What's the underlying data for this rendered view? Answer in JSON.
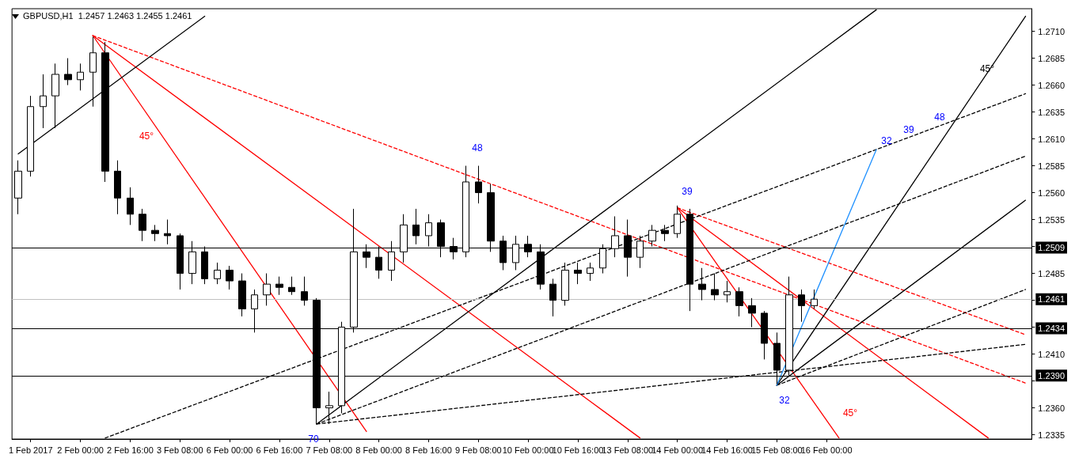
{
  "chart_data": {
    "type": "candlestick",
    "title": "GBPUSD,H1  1.2457 1.2463 1.2455 1.2461",
    "categories": [
      null,
      "1 Feb 2017",
      null,
      null,
      null,
      "2 Feb 00:00",
      null,
      null,
      null,
      "2 Feb 16:00",
      null,
      null,
      null,
      "3 Feb 08:00",
      null,
      null,
      null,
      "6 Feb 00:00",
      null,
      null,
      null,
      "6 Feb 16:00",
      null,
      null,
      null,
      "7 Feb 08:00",
      null,
      null,
      null,
      "8 Feb 00:00",
      null,
      null,
      null,
      "8 Feb 16:00",
      null,
      null,
      null,
      "9 Feb 08:00",
      null,
      null,
      null,
      "10 Feb 00:00",
      null,
      null,
      null,
      "10 Feb 16:00",
      null,
      null,
      null,
      "13 Feb 08:00",
      null,
      null,
      null,
      "14 Feb 00:00",
      null,
      null,
      null,
      "14 Feb 16:00",
      null,
      null,
      null,
      "15 Feb 08:00",
      null,
      null,
      null,
      "16 Feb 00:00",
      null,
      null,
      null,
      null,
      null,
      null,
      null,
      null,
      null,
      null,
      null,
      null,
      null,
      null,
      null,
      null
    ],
    "ohlc": [
      [
        1.2555,
        1.259,
        1.254,
        1.258
      ],
      [
        1.258,
        1.265,
        1.2575,
        1.264
      ],
      [
        1.264,
        1.267,
        1.262,
        1.265
      ],
      [
        1.265,
        1.268,
        1.262,
        1.267
      ],
      [
        1.267,
        1.2685,
        1.266,
        1.2665
      ],
      [
        1.2665,
        1.268,
        1.2655,
        1.2672
      ],
      [
        1.2672,
        1.2705,
        1.264,
        1.269
      ],
      [
        1.269,
        1.27,
        1.257,
        1.258
      ],
      [
        1.258,
        1.259,
        1.254,
        1.2555
      ],
      [
        1.2555,
        1.2565,
        1.253,
        1.254
      ],
      [
        1.254,
        1.2545,
        1.2515,
        1.2525
      ],
      [
        1.2525,
        1.253,
        1.2515,
        1.2522
      ],
      [
        1.2522,
        1.2535,
        1.2512,
        1.252
      ],
      [
        1.252,
        1.2522,
        1.247,
        1.2485
      ],
      [
        1.2485,
        1.2515,
        1.2475,
        1.2505
      ],
      [
        1.2505,
        1.251,
        1.2475,
        1.248
      ],
      [
        1.248,
        1.2495,
        1.2475,
        1.2488
      ],
      [
        1.2488,
        1.2492,
        1.247,
        1.2478
      ],
      [
        1.2478,
        1.2485,
        1.2445,
        1.2452
      ],
      [
        1.2452,
        1.247,
        1.243,
        1.2465
      ],
      [
        1.2465,
        1.2485,
        1.2455,
        1.2475
      ],
      [
        1.2475,
        1.2482,
        1.2465,
        1.2472
      ],
      [
        1.2472,
        1.2482,
        1.2465,
        1.2468
      ],
      [
        1.2468,
        1.2482,
        1.2455,
        1.246
      ],
      [
        1.246,
        1.2462,
        1.2345,
        1.236
      ],
      [
        1.236,
        1.2375,
        1.2345,
        1.2362
      ],
      [
        1.2362,
        1.244,
        1.2355,
        1.2435
      ],
      [
        1.2435,
        1.2545,
        1.243,
        1.2505
      ],
      [
        1.2505,
        1.2512,
        1.249,
        1.25
      ],
      [
        1.25,
        1.251,
        1.248,
        1.2488
      ],
      [
        1.2488,
        1.2515,
        1.2478,
        1.2505
      ],
      [
        1.2505,
        1.254,
        1.2495,
        1.253
      ],
      [
        1.253,
        1.2545,
        1.2512,
        1.252
      ],
      [
        1.252,
        1.254,
        1.251,
        1.2532
      ],
      [
        1.2532,
        1.2535,
        1.25,
        1.251
      ],
      [
        1.251,
        1.2518,
        1.2498,
        1.2505
      ],
      [
        1.2505,
        1.2585,
        1.25,
        1.257
      ],
      [
        1.257,
        1.2585,
        1.255,
        1.256
      ],
      [
        1.256,
        1.2568,
        1.2505,
        1.2515
      ],
      [
        1.2515,
        1.252,
        1.2488,
        1.2495
      ],
      [
        1.2495,
        1.252,
        1.2488,
        1.2512
      ],
      [
        1.2512,
        1.252,
        1.25,
        1.2505
      ],
      [
        1.2505,
        1.2512,
        1.247,
        1.2475
      ],
      [
        1.2475,
        1.248,
        1.2445,
        1.246
      ],
      [
        1.246,
        1.2495,
        1.2455,
        1.2488
      ],
      [
        1.2488,
        1.2495,
        1.2475,
        1.2485
      ],
      [
        1.2485,
        1.2495,
        1.2478,
        1.249
      ],
      [
        1.249,
        1.2512,
        1.2485,
        1.2508
      ],
      [
        1.2508,
        1.2538,
        1.25,
        1.252
      ],
      [
        1.252,
        1.2535,
        1.2482,
        1.25
      ],
      [
        1.25,
        1.252,
        1.249,
        1.2515
      ],
      [
        1.2515,
        1.253,
        1.251,
        1.2525
      ],
      [
        1.2525,
        1.253,
        1.2515,
        1.2522
      ],
      [
        1.2522,
        1.2548,
        1.2518,
        1.254
      ],
      [
        1.254,
        1.2545,
        1.245,
        1.2475
      ],
      [
        1.2475,
        1.249,
        1.246,
        1.247
      ],
      [
        1.247,
        1.2485,
        1.246,
        1.2465
      ],
      [
        1.2465,
        1.2478,
        1.2458,
        1.2468
      ],
      [
        1.2468,
        1.2472,
        1.2445,
        1.2455
      ],
      [
        1.2455,
        1.2462,
        1.2435,
        1.2448
      ],
      [
        1.2448,
        1.245,
        1.2405,
        1.242
      ],
      [
        1.242,
        1.243,
        1.2382,
        1.2395
      ],
      [
        1.2395,
        1.2482,
        1.239,
        1.2465
      ],
      [
        1.2465,
        1.247,
        1.244,
        1.2455
      ],
      [
        1.2455,
        1.247,
        1.2452,
        1.2461
      ],
      null,
      null,
      null,
      null,
      null,
      null,
      null,
      null,
      null,
      null,
      null,
      null,
      null,
      null,
      null,
      null,
      null
    ],
    "color": "#000000",
    "series": [
      {
        "type": "line",
        "color": "#ff0000",
        "line_style": "solid",
        "values": [
          null,
          null,
          null,
          null,
          null,
          null,
          1.2706,
          null,
          null,
          null,
          null,
          null,
          null,
          null,
          null,
          null,
          null,
          null,
          null,
          null,
          null,
          null,
          null,
          null,
          null,
          null,
          null,
          null,
          1.2338,
          null,
          null,
          null,
          null,
          null,
          null,
          null,
          null,
          null,
          null,
          null,
          null,
          null,
          null,
          null,
          null,
          null,
          null,
          null,
          null,
          null,
          null,
          null,
          null,
          null,
          null,
          null,
          null,
          null,
          null,
          null,
          null,
          null,
          null,
          null,
          null,
          null,
          null,
          null,
          null,
          null,
          null,
          null,
          null,
          null,
          null,
          null,
          null,
          null,
          null,
          null,
          null,
          null
        ]
      },
      {
        "type": "line",
        "color": "#ff0000",
        "line_style": "solid",
        "values": [
          null,
          null,
          null,
          null,
          null,
          null,
          1.2706,
          null,
          null,
          null,
          null,
          null,
          null,
          null,
          null,
          null,
          null,
          null,
          null,
          null,
          null,
          null,
          null,
          null,
          null,
          null,
          null,
          null,
          null,
          null,
          null,
          null,
          null,
          null,
          null,
          null,
          null,
          null,
          null,
          null,
          null,
          null,
          null,
          null,
          null,
          null,
          null,
          null,
          null,
          null,
          1.2332,
          null,
          null,
          null,
          null,
          null,
          null,
          null,
          null,
          null,
          null,
          null,
          null,
          null,
          null,
          null,
          null,
          null,
          null,
          null,
          null,
          null,
          null,
          null,
          null,
          null,
          null,
          null,
          null,
          null,
          null,
          null
        ]
      },
      {
        "type": "line",
        "color": "#ff0000",
        "line_style": "dashed",
        "values": [
          null,
          null,
          null,
          null,
          null,
          null,
          1.2706,
          null,
          null,
          null,
          null,
          null,
          null,
          null,
          null,
          null,
          null,
          null,
          null,
          null,
          null,
          null,
          null,
          null,
          null,
          null,
          null,
          null,
          null,
          null,
          null,
          null,
          null,
          null,
          null,
          null,
          null,
          null,
          null,
          null,
          null,
          null,
          null,
          null,
          null,
          null,
          null,
          null,
          null,
          null,
          null,
          null,
          null,
          null,
          null,
          null,
          null,
          null,
          null,
          null,
          null,
          null,
          null,
          null,
          null,
          null,
          null,
          null,
          null,
          null,
          null,
          null,
          null,
          null,
          null,
          null,
          null,
          null,
          null,
          null,
          null,
          1.2383
        ]
      },
      {
        "type": "line",
        "color": "#ff0000",
        "line_style": "solid",
        "values": [
          null,
          null,
          null,
          null,
          null,
          null,
          null,
          null,
          null,
          null,
          null,
          null,
          null,
          null,
          null,
          null,
          null,
          null,
          null,
          null,
          null,
          null,
          null,
          null,
          null,
          null,
          null,
          null,
          null,
          null,
          null,
          null,
          null,
          null,
          null,
          null,
          null,
          null,
          null,
          null,
          null,
          null,
          null,
          null,
          null,
          null,
          null,
          null,
          null,
          null,
          null,
          null,
          null,
          1.2546,
          null,
          null,
          null,
          null,
          null,
          null,
          null,
          null,
          null,
          null,
          null,
          null,
          1.2332,
          null,
          null,
          null,
          null,
          null,
          null,
          null,
          null,
          null,
          null,
          null,
          null,
          null,
          null,
          null
        ]
      },
      {
        "type": "line",
        "color": "#ff0000",
        "line_style": "solid",
        "values": [
          null,
          null,
          null,
          null,
          null,
          null,
          null,
          null,
          null,
          null,
          null,
          null,
          null,
          null,
          null,
          null,
          null,
          null,
          null,
          null,
          null,
          null,
          null,
          null,
          null,
          null,
          null,
          null,
          null,
          null,
          null,
          null,
          null,
          null,
          null,
          null,
          null,
          null,
          null,
          null,
          null,
          null,
          null,
          null,
          null,
          null,
          null,
          null,
          null,
          null,
          null,
          null,
          null,
          1.2546,
          null,
          null,
          null,
          null,
          null,
          null,
          null,
          null,
          null,
          null,
          null,
          null,
          null,
          null,
          null,
          null,
          null,
          null,
          null,
          null,
          null,
          null,
          null,
          null,
          1.2332,
          null,
          null,
          null
        ]
      },
      {
        "type": "line",
        "color": "#ff0000",
        "line_style": "dashed",
        "values": [
          null,
          null,
          null,
          null,
          null,
          null,
          null,
          null,
          null,
          null,
          null,
          null,
          null,
          null,
          null,
          null,
          null,
          null,
          null,
          null,
          null,
          null,
          null,
          null,
          null,
          null,
          null,
          null,
          null,
          null,
          null,
          null,
          null,
          null,
          null,
          null,
          null,
          null,
          null,
          null,
          null,
          null,
          null,
          null,
          null,
          null,
          null,
          null,
          null,
          null,
          null,
          null,
          null,
          1.2546,
          null,
          null,
          null,
          null,
          null,
          null,
          null,
          null,
          null,
          null,
          null,
          null,
          null,
          null,
          null,
          null,
          null,
          null,
          null,
          null,
          null,
          null,
          null,
          null,
          null,
          null,
          null,
          1.2428
        ]
      },
      {
        "type": "line",
        "color": "#000000",
        "line_style": "solid",
        "values": [
          1.2596,
          null,
          null,
          null,
          null,
          null,
          null,
          null,
          null,
          null,
          null,
          null,
          null,
          null,
          null,
          1.2724,
          null,
          null,
          null,
          null,
          null,
          null,
          null,
          null,
          null,
          null,
          null,
          null,
          null,
          null,
          null,
          null,
          null,
          null,
          null,
          null,
          null,
          null,
          null,
          null,
          null,
          null,
          null,
          null,
          null,
          null,
          null,
          null,
          null,
          null,
          null,
          null,
          null,
          null,
          null,
          null,
          null,
          null,
          null,
          null,
          null,
          null,
          null,
          null,
          null,
          null,
          null,
          null,
          null,
          null,
          null,
          null,
          null,
          null,
          null,
          null,
          null,
          null,
          null,
          null,
          null,
          null
        ]
      },
      {
        "type": "line",
        "color": "#000000",
        "line_style": "solid",
        "values": [
          null,
          null,
          null,
          null,
          null,
          null,
          null,
          null,
          null,
          null,
          null,
          null,
          null,
          null,
          null,
          null,
          null,
          null,
          null,
          null,
          null,
          null,
          null,
          null,
          1.2345,
          null,
          null,
          null,
          null,
          null,
          null,
          null,
          null,
          null,
          null,
          null,
          null,
          null,
          null,
          null,
          null,
          null,
          null,
          null,
          null,
          null,
          null,
          null,
          null,
          null,
          null,
          null,
          null,
          null,
          null,
          null,
          null,
          null,
          null,
          null,
          null,
          null,
          null,
          null,
          null,
          null,
          null,
          null,
          null,
          1.273,
          null,
          null,
          null,
          null,
          null,
          null,
          null,
          null,
          null,
          null,
          null,
          null
        ]
      },
      {
        "type": "line",
        "color": "#000000",
        "line_style": "dashed",
        "values": [
          null,
          null,
          null,
          null,
          null,
          null,
          null,
          1.2332,
          null,
          null,
          null,
          null,
          null,
          null,
          null,
          null,
          null,
          null,
          null,
          null,
          null,
          null,
          null,
          null,
          null,
          null,
          null,
          null,
          null,
          null,
          null,
          null,
          null,
          null,
          null,
          null,
          null,
          null,
          null,
          null,
          null,
          null,
          null,
          null,
          null,
          null,
          null,
          null,
          null,
          null,
          null,
          null,
          null,
          null,
          null,
          null,
          null,
          null,
          null,
          null,
          null,
          null,
          null,
          null,
          null,
          null,
          null,
          null,
          null,
          null,
          null,
          null,
          null,
          null,
          null,
          null,
          null,
          null,
          null,
          null,
          null,
          1.2652
        ]
      },
      {
        "type": "line",
        "color": "#000000",
        "line_style": "dashed",
        "values": [
          null,
          null,
          null,
          null,
          null,
          null,
          null,
          null,
          null,
          null,
          null,
          null,
          null,
          null,
          null,
          null,
          null,
          null,
          null,
          null,
          null,
          null,
          null,
          null,
          1.2345,
          null,
          null,
          null,
          null,
          null,
          null,
          null,
          null,
          null,
          null,
          null,
          null,
          null,
          null,
          null,
          null,
          null,
          null,
          null,
          null,
          null,
          null,
          null,
          null,
          null,
          null,
          null,
          null,
          null,
          null,
          null,
          null,
          null,
          null,
          null,
          null,
          null,
          null,
          null,
          null,
          null,
          null,
          null,
          null,
          null,
          null,
          null,
          null,
          null,
          null,
          null,
          null,
          null,
          null,
          null,
          null,
          1.2594
        ]
      },
      {
        "type": "line",
        "color": "#000000",
        "line_style": "dashed",
        "values": [
          null,
          null,
          null,
          null,
          null,
          null,
          null,
          null,
          null,
          null,
          null,
          null,
          null,
          null,
          null,
          null,
          null,
          null,
          null,
          null,
          null,
          null,
          null,
          null,
          1.2345,
          null,
          null,
          null,
          null,
          null,
          null,
          null,
          null,
          null,
          null,
          null,
          null,
          null,
          null,
          null,
          null,
          null,
          null,
          null,
          null,
          null,
          null,
          null,
          null,
          null,
          null,
          null,
          null,
          null,
          null,
          null,
          null,
          null,
          null,
          null,
          null,
          null,
          null,
          null,
          null,
          null,
          null,
          null,
          null,
          null,
          null,
          null,
          null,
          null,
          null,
          null,
          null,
          null,
          null,
          null,
          null,
          1.2419
        ]
      },
      {
        "type": "line",
        "color": "#000000",
        "line_style": "solid",
        "values": [
          null,
          null,
          null,
          null,
          null,
          null,
          null,
          null,
          null,
          null,
          null,
          null,
          null,
          null,
          null,
          null,
          null,
          null,
          null,
          null,
          null,
          null,
          null,
          null,
          null,
          null,
          null,
          null,
          null,
          null,
          null,
          null,
          null,
          null,
          null,
          null,
          null,
          null,
          null,
          null,
          null,
          null,
          null,
          null,
          null,
          null,
          null,
          null,
          null,
          null,
          null,
          null,
          null,
          null,
          null,
          null,
          null,
          null,
          null,
          null,
          null,
          1.2381,
          null,
          null,
          null,
          null,
          null,
          null,
          null,
          null,
          null,
          null,
          null,
          null,
          null,
          null,
          null,
          null,
          null,
          null,
          null,
          1.2724
        ]
      },
      {
        "type": "line",
        "color": "#000000",
        "line_style": "solid",
        "values": [
          null,
          null,
          null,
          null,
          null,
          null,
          null,
          null,
          null,
          null,
          null,
          null,
          null,
          null,
          null,
          null,
          null,
          null,
          null,
          null,
          null,
          null,
          null,
          null,
          null,
          null,
          null,
          null,
          null,
          null,
          null,
          null,
          null,
          null,
          null,
          null,
          null,
          null,
          null,
          null,
          null,
          null,
          null,
          null,
          null,
          null,
          null,
          null,
          null,
          null,
          null,
          null,
          null,
          null,
          null,
          null,
          null,
          null,
          null,
          null,
          null,
          1.2381,
          null,
          null,
          null,
          null,
          null,
          null,
          null,
          null,
          null,
          null,
          null,
          null,
          null,
          null,
          null,
          null,
          null,
          null,
          null,
          1.2553
        ]
      },
      {
        "type": "line",
        "color": "#000000",
        "line_style": "dashed",
        "values": [
          null,
          null,
          null,
          null,
          null,
          null,
          null,
          null,
          null,
          null,
          null,
          null,
          null,
          null,
          null,
          null,
          null,
          null,
          null,
          null,
          null,
          null,
          null,
          null,
          null,
          null,
          null,
          null,
          null,
          null,
          null,
          null,
          null,
          null,
          null,
          null,
          null,
          null,
          null,
          null,
          null,
          null,
          null,
          null,
          null,
          null,
          null,
          null,
          null,
          null,
          null,
          null,
          null,
          null,
          null,
          null,
          null,
          null,
          null,
          null,
          null,
          1.2381,
          null,
          null,
          null,
          null,
          null,
          null,
          null,
          null,
          null,
          null,
          null,
          null,
          null,
          null,
          null,
          null,
          null,
          null,
          null,
          1.247
        ]
      },
      {
        "type": "line",
        "color": "#1e90ff",
        "line_style": "solid",
        "values": [
          null,
          null,
          null,
          null,
          null,
          null,
          null,
          null,
          null,
          null,
          null,
          null,
          null,
          null,
          null,
          null,
          null,
          null,
          null,
          null,
          null,
          null,
          null,
          null,
          null,
          null,
          null,
          null,
          null,
          null,
          null,
          null,
          null,
          null,
          null,
          null,
          null,
          null,
          null,
          null,
          null,
          null,
          null,
          null,
          null,
          null,
          null,
          null,
          null,
          null,
          null,
          null,
          null,
          null,
          null,
          null,
          null,
          null,
          null,
          null,
          null,
          1.2381,
          null,
          null,
          null,
          null,
          null,
          null,
          null,
          1.26,
          null,
          null,
          null,
          null,
          null,
          null,
          null,
          null,
          null,
          null,
          null,
          null
        ]
      }
    ],
    "ref_lines": [
      {
        "axis": "y",
        "value": 1.2509,
        "label": "1.2509",
        "color": "#000000"
      },
      {
        "axis": "y",
        "value": 1.2461,
        "label": "1.2461",
        "color": "#c0c0c0"
      },
      {
        "axis": "y",
        "value": 1.2434,
        "label": "1.2434",
        "color": "#000000"
      },
      {
        "axis": "y",
        "value": 1.239,
        "label": "1.2390",
        "color": "#000000"
      }
    ],
    "annotations": [
      "45°",
      "45°",
      "45°",
      "48",
      "39",
      "70",
      "32",
      "32",
      "39",
      "48"
    ],
    "ylim": [
      1.2331,
      1.2731
    ],
    "yticks": [
      {
        "value": 1.2335,
        "label": "1.2335"
      },
      {
        "value": 1.236,
        "label": "1.2360"
      },
      {
        "value": 1.2385,
        "label": null
      },
      {
        "value": 1.241,
        "label": "1.2410"
      },
      {
        "value": 1.2435,
        "label": null
      },
      {
        "value": 1.246,
        "label": null
      },
      {
        "value": 1.2485,
        "label": "1.2485"
      },
      {
        "value": 1.251,
        "label": null
      },
      {
        "value": 1.2535,
        "label": "1.2535"
      },
      {
        "value": 1.256,
        "label": "1.2560"
      },
      {
        "value": 1.2585,
        "label": "1.2585"
      },
      {
        "value": 1.261,
        "label": "1.2610"
      },
      {
        "value": 1.2635,
        "label": "1.2635"
      },
      {
        "value": 1.266,
        "label": "1.2660"
      },
      {
        "value": 1.2685,
        "label": "1.2685"
      },
      {
        "value": 1.271,
        "label": "1.2710"
      }
    ],
    "grid": false
  }
}
